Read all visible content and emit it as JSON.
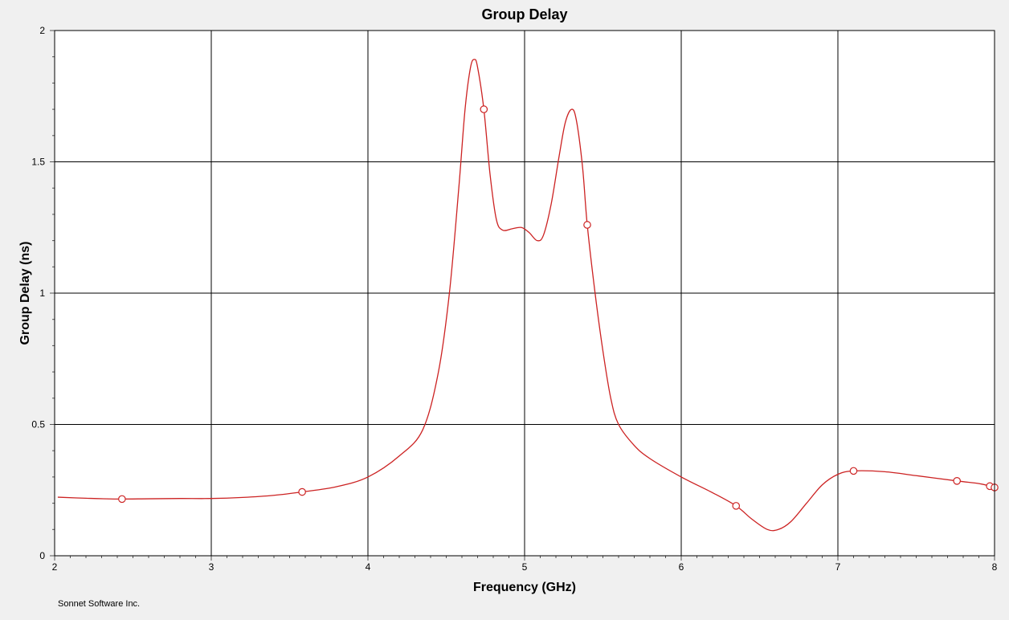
{
  "footer": "Sonnet Software Inc.",
  "chart_data": {
    "type": "line",
    "title": "Group Delay",
    "xlabel": "Frequency (GHz)",
    "ylabel": "Group Delay (ns)",
    "xlim": [
      2,
      8
    ],
    "ylim": [
      0,
      2
    ],
    "x_ticks": [
      "2",
      "3",
      "4",
      "5",
      "6",
      "7",
      "8"
    ],
    "y_ticks": [
      "0",
      "0.5",
      "1",
      "1.5",
      "2"
    ],
    "grid": true,
    "colors": {
      "series": "#cc2222",
      "background": "#ffffff",
      "frame": "#f0f0f0"
    },
    "series": [
      {
        "points": [
          [
            2.02,
            0.223
          ],
          [
            2.2,
            0.219
          ],
          [
            2.4,
            0.216
          ],
          [
            2.6,
            0.217
          ],
          [
            2.8,
            0.218
          ],
          [
            3.0,
            0.218
          ],
          [
            3.2,
            0.222
          ],
          [
            3.4,
            0.23
          ],
          [
            3.58,
            0.243
          ],
          [
            3.8,
            0.263
          ],
          [
            4.0,
            0.3
          ],
          [
            4.2,
            0.38
          ],
          [
            4.35,
            0.48
          ],
          [
            4.45,
            0.7
          ],
          [
            4.52,
            1.0
          ],
          [
            4.58,
            1.4
          ],
          [
            4.62,
            1.7
          ],
          [
            4.655,
            1.86
          ],
          [
            4.68,
            1.89
          ],
          [
            4.7,
            1.86
          ],
          [
            4.74,
            1.7
          ],
          [
            4.78,
            1.45
          ],
          [
            4.82,
            1.28
          ],
          [
            4.86,
            1.24
          ],
          [
            4.92,
            1.245
          ],
          [
            4.98,
            1.25
          ],
          [
            5.03,
            1.23
          ],
          [
            5.08,
            1.2
          ],
          [
            5.12,
            1.22
          ],
          [
            5.17,
            1.34
          ],
          [
            5.22,
            1.52
          ],
          [
            5.26,
            1.65
          ],
          [
            5.3,
            1.7
          ],
          [
            5.33,
            1.66
          ],
          [
            5.37,
            1.48
          ],
          [
            5.4,
            1.26
          ],
          [
            5.45,
            1.0
          ],
          [
            5.5,
            0.78
          ],
          [
            5.55,
            0.6
          ],
          [
            5.6,
            0.5
          ],
          [
            5.7,
            0.42
          ],
          [
            5.8,
            0.37
          ],
          [
            6.0,
            0.3
          ],
          [
            6.2,
            0.24
          ],
          [
            6.35,
            0.19
          ],
          [
            6.45,
            0.14
          ],
          [
            6.55,
            0.1
          ],
          [
            6.62,
            0.1
          ],
          [
            6.7,
            0.13
          ],
          [
            6.8,
            0.2
          ],
          [
            6.9,
            0.27
          ],
          [
            7.0,
            0.31
          ],
          [
            7.1,
            0.323
          ],
          [
            7.3,
            0.32
          ],
          [
            7.5,
            0.305
          ],
          [
            7.76,
            0.285
          ],
          [
            7.9,
            0.275
          ],
          [
            7.97,
            0.265
          ],
          [
            8.0,
            0.255
          ]
        ],
        "markers": [
          [
            2.43,
            0.216
          ],
          [
            3.58,
            0.243
          ],
          [
            4.74,
            1.7
          ],
          [
            5.4,
            1.26
          ],
          [
            6.35,
            0.19
          ],
          [
            7.1,
            0.323
          ],
          [
            7.76,
            0.285
          ],
          [
            7.97,
            0.265
          ],
          [
            8.0,
            0.26
          ]
        ]
      }
    ]
  }
}
